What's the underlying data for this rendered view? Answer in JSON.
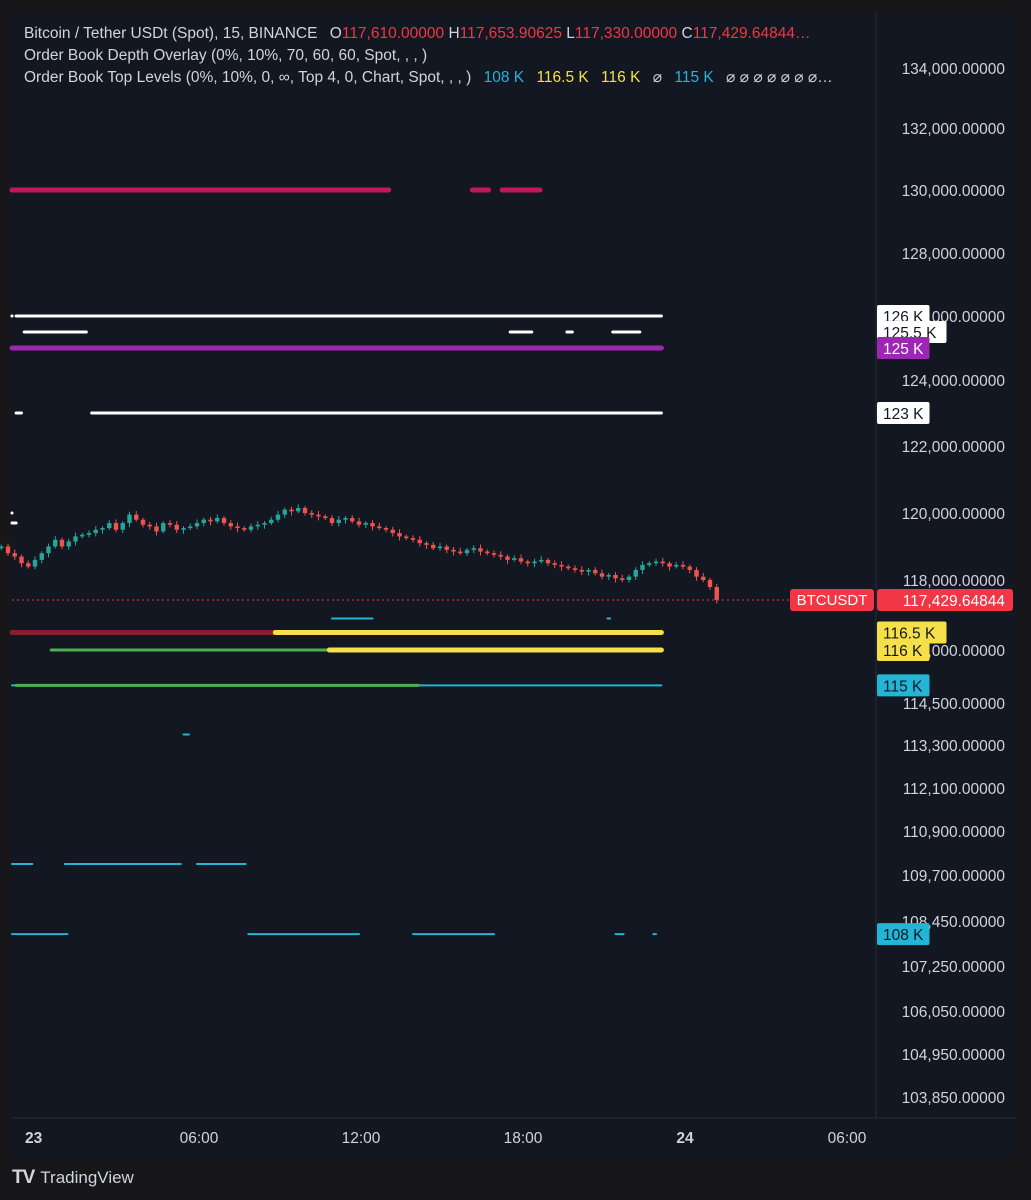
{
  "header": {
    "symbol_line": "Bitcoin / Tether USDt (Spot), 15, BINANCE",
    "ohlc": [
      {
        "key": "O",
        "value": "117,610.00000"
      },
      {
        "key": "H",
        "value": "117,653.90625"
      },
      {
        "key": "L",
        "value": "117,330.00000"
      },
      {
        "key": "C",
        "value": "117,429.64844…"
      }
    ],
    "indicator_1": "Order Book Depth Overlay (0%, 10%, 70, 60, 60, Spot, , , )",
    "indicator_2": "Order Book Top Levels (0%, 10%, 0, ∞, Top 4, 0, Chart, Spot, , , )",
    "indicator_2_values": [
      {
        "text": "108 K",
        "color": "#22b5d6"
      },
      {
        "text": "116.5 K",
        "color": "#f5e04a"
      },
      {
        "text": "116 K",
        "color": "#f5e04a"
      },
      {
        "text": "⌀",
        "color": "#d1d4dc"
      },
      {
        "text": "115 K",
        "color": "#22b5d6"
      },
      {
        "text": "⌀ ⌀ ⌀ ⌀ ⌀ ⌀ ⌀…",
        "color": "#d1d4dc"
      }
    ]
  },
  "brand": {
    "logo": "TV",
    "name": "TradingView"
  },
  "colors": {
    "background": "#131722",
    "bull": "#26a69a",
    "bear": "#ef5350",
    "price_line": "#f23645",
    "axis_text": "#d1d4dc"
  },
  "chart_data": {
    "type": "candlestick",
    "symbol": "BTCUSDT",
    "interval": "15",
    "last_price": 117429.64844,
    "last_price_label": "117,429.64844",
    "y_axis": {
      "scale": "piecewise",
      "ticks": [
        {
          "value": 134000,
          "label": "134,000.00000"
        },
        {
          "value": 132000,
          "label": "132,000.00000"
        },
        {
          "value": 130000,
          "label": "130,000.00000"
        },
        {
          "value": 128000,
          "label": "128,000.00000"
        },
        {
          "value": 126000,
          "label": "126,000.00000"
        },
        {
          "value": 124000,
          "label": "124,000.00000"
        },
        {
          "value": 122000,
          "label": "122,000.00000"
        },
        {
          "value": 120000,
          "label": "120,000.00000"
        },
        {
          "value": 118000,
          "label": "118,000.00000"
        },
        {
          "value": 116000,
          "label": "116,000.00000"
        },
        {
          "value": 114500,
          "label": "114,500.00000"
        },
        {
          "value": 113300,
          "label": "113,300.00000"
        },
        {
          "value": 112100,
          "label": "112,100.00000"
        },
        {
          "value": 110900,
          "label": "110,900.00000"
        },
        {
          "value": 109700,
          "label": "109,700.00000"
        },
        {
          "value": 108450,
          "label": "108,450.00000"
        },
        {
          "value": 107250,
          "label": "107,250.00000"
        },
        {
          "value": 106050,
          "label": "106,050.00000"
        },
        {
          "value": 104950,
          "label": "104,950.00000"
        },
        {
          "value": 103850,
          "label": "103,850.00000"
        }
      ]
    },
    "x_axis": {
      "range_hours": [
        -4.3,
        30.5
      ],
      "ticks": [
        {
          "hour": 0,
          "label": "23",
          "bold": true
        },
        {
          "hour": 6,
          "label": "06:00"
        },
        {
          "hour": 12,
          "label": "12:00"
        },
        {
          "hour": 18,
          "label": "18:00"
        },
        {
          "hour": 24,
          "label": "24",
          "bold": true
        },
        {
          "hour": 30,
          "label": "06:00"
        }
      ]
    },
    "candles_close": [
      119000,
      118900,
      118800,
      118950,
      119050,
      118900,
      118700,
      118750,
      118900,
      118950,
      119100,
      118950,
      119000,
      118800,
      118700,
      118500,
      118400,
      118600,
      118800,
      119000,
      119200,
      119000,
      119150,
      119300,
      119350,
      119400,
      119500,
      119550,
      119700,
      119500,
      119700,
      119950,
      119800,
      119650,
      119600,
      119450,
      119700,
      119650,
      119500,
      119550,
      119600,
      119700,
      119800,
      119750,
      119850,
      119700,
      119600,
      119550,
      119500,
      119600,
      119650,
      119700,
      119800,
      119950,
      120100,
      120050,
      120150,
      120000,
      119950,
      119900,
      119850,
      119700,
      119800,
      119850,
      119750,
      119650,
      119700,
      119600,
      119550,
      119500,
      119400,
      119300,
      119250,
      119200,
      119100,
      119050,
      118950,
      119000,
      118900,
      118850,
      118800,
      118900,
      118950,
      118850,
      118800,
      118750,
      118700,
      118600,
      118650,
      118550,
      118500,
      118550,
      118600,
      118500,
      118450,
      118400,
      118350,
      118300,
      118250,
      118300,
      118200,
      118100,
      118150,
      118050,
      118000,
      118100,
      118300,
      118450,
      118500,
      118550,
      118500,
      118400,
      118450,
      118400,
      118300,
      118100,
      118000,
      117800,
      117429.64844
    ],
    "candle_start_hour": -4.25,
    "candle_step_hours": 0.25,
    "levels": [
      {
        "price": 130000,
        "segments": [
          [
            -4.3,
            -3.8
          ],
          [
            -3.8,
            0.5
          ],
          [
            0.5,
            2.9
          ],
          [
            2.9,
            13.1
          ],
          [
            16.2,
            16.8
          ],
          [
            17.3,
            18.7
          ]
        ],
        "color": "#c2185b",
        "width": 5
      },
      {
        "price": 126000,
        "segments": [
          [
            -4.3,
            -3.9
          ],
          [
            -3.3,
            -1.4
          ],
          [
            -0.7,
            23.2
          ]
        ],
        "color": "#ffffff",
        "width": 3
      },
      {
        "price": 125500,
        "segments": [
          [
            -0.4,
            1.9
          ],
          [
            17.6,
            18.4
          ],
          [
            19.7,
            19.9
          ],
          [
            21.4,
            22.4
          ]
        ],
        "color": "#ffffff",
        "width": 3
      },
      {
        "price": 125000,
        "segments": [
          [
            -4.3,
            23.2
          ]
        ],
        "color": "#9c27b0",
        "width": 5
      },
      {
        "price": 123000,
        "segments": [
          [
            -0.7,
            -0.5
          ],
          [
            2.1,
            23.2
          ]
        ],
        "color": "#ffffff",
        "width": 3
      },
      {
        "price": 120000,
        "segments": [
          [
            -4.3,
            -1.1
          ]
        ],
        "color": "#ffffff",
        "width": 3
      },
      {
        "price": 119700,
        "segments": [
          [
            -1.0,
            -0.7
          ]
        ],
        "color": "#ffffff",
        "width": 3
      },
      {
        "price": 116900,
        "segments": [
          [
            11.0,
            12.5
          ],
          [
            21.2,
            21.3
          ]
        ],
        "color": "#22b5d6",
        "width": 2
      },
      {
        "price": 116500,
        "segments": [
          [
            -4.3,
            8.9
          ]
        ],
        "color": "#8b1e2d",
        "width": 5
      },
      {
        "price": 116500,
        "segments": [
          [
            8.9,
            23.2
          ]
        ],
        "color": "#f5e04a",
        "width": 5
      },
      {
        "price": 116000,
        "segments": [
          [
            0.6,
            10.9
          ]
        ],
        "color": "#4caf50",
        "width": 3
      },
      {
        "price": 116000,
        "segments": [
          [
            10.9,
            23.2
          ]
        ],
        "color": "#f5e04a",
        "width": 5
      },
      {
        "price": 115000,
        "segments": [
          [
            -4.3,
            -0.7
          ],
          [
            14.2,
            23.2
          ]
        ],
        "color": "#22b5d6",
        "width": 2
      },
      {
        "price": 115000,
        "segments": [
          [
            -0.7,
            14.2
          ]
        ],
        "color": "#4caf50",
        "width": 3
      },
      {
        "price": 113600,
        "segments": [
          [
            5.5,
            5.7
          ]
        ],
        "color": "#22b5d6",
        "width": 2
      },
      {
        "price": 110000,
        "segments": [
          [
            -4.3,
            -0.1
          ],
          [
            1.1,
            5.4
          ],
          [
            6.0,
            7.8
          ]
        ],
        "color": "#22b5d6",
        "width": 2
      },
      {
        "price": 108100,
        "segments": [
          [
            -4.3,
            1.2
          ],
          [
            7.9,
            12.0
          ],
          [
            14.0,
            17.0
          ],
          [
            21.5,
            21.8
          ],
          [
            22.9,
            23.0
          ]
        ],
        "color": "#22b5d6",
        "width": 2
      }
    ],
    "price_labels": [
      {
        "price": 126000,
        "text": "126 K",
        "bg": "#ffffff",
        "fg": "#131722"
      },
      {
        "price": 125500,
        "text": "125.5 K",
        "bg": "#ffffff",
        "fg": "#131722"
      },
      {
        "price": 125000,
        "text": "125 K",
        "bg": "#9c27b0",
        "fg": "#ffffff"
      },
      {
        "price": 123000,
        "text": "123 K",
        "bg": "#ffffff",
        "fg": "#131722"
      },
      {
        "price": 116500,
        "text": "116.5 K",
        "bg": "#f5e04a",
        "fg": "#131722"
      },
      {
        "price": 116000,
        "text": "116 K",
        "bg": "#f5e04a",
        "fg": "#131722"
      },
      {
        "price": 115000,
        "text": "115 K",
        "bg": "#22b5d6",
        "fg": "#131722"
      },
      {
        "price": 108100,
        "text": "108 K",
        "bg": "#22b5d6",
        "fg": "#131722"
      }
    ]
  }
}
